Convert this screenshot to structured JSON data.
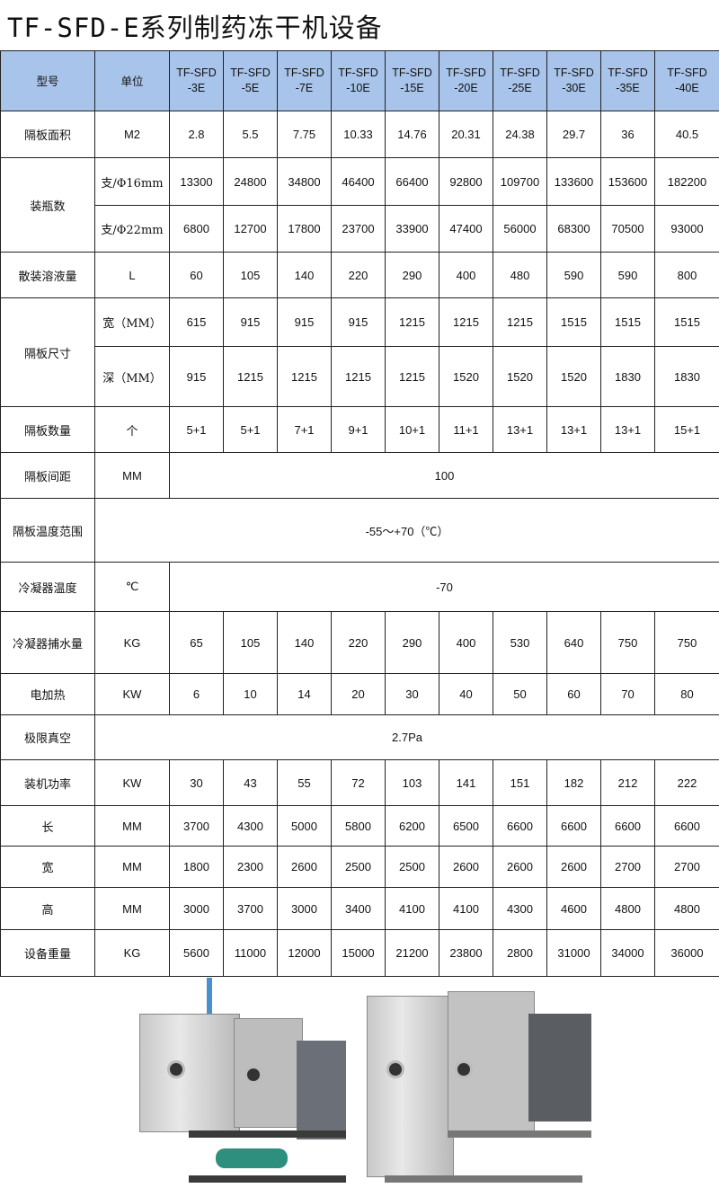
{
  "title": "TF-SFD-E系列制药冻干机设备",
  "table": {
    "header": {
      "label": "型号",
      "unit": "单位",
      "models": [
        "TF-SFD\n-3E",
        "TF-SFD\n-5E",
        "TF-SFD\n-7E",
        "TF-SFD\n-10E",
        "TF-SFD\n-15E",
        "TF-SFD\n-20E",
        "TF-SFD\n-25E",
        "TF-SFD\n-30E",
        "TF-SFD\n-35E",
        "TF-SFD\n-40E"
      ]
    },
    "rows": [
      {
        "label": "隔板面积",
        "unit": "M2",
        "values": [
          "2.8",
          "5.5",
          "7.75",
          "10.33",
          "14.76",
          "20.31",
          "24.38",
          "29.7",
          "36",
          "40.5"
        ],
        "h": 52
      },
      {
        "label": "装瓶数",
        "sub": [
          {
            "unit": "支/Φ16mm",
            "values": [
              "13300",
              "24800",
              "34800",
              "46400",
              "66400",
              "92800",
              "109700",
              "133600",
              "153600",
              "182200"
            ]
          },
          {
            "unit": "支/Φ22mm",
            "values": [
              "6800",
              "12700",
              "17800",
              "23700",
              "33900",
              "47400",
              "56000",
              "68300",
              "70500",
              "93000"
            ]
          }
        ],
        "h": [
          53,
          52
        ]
      },
      {
        "label": "散装溶液量",
        "unit": "L",
        "values": [
          "60",
          "105",
          "140",
          "220",
          "290",
          "400",
          "480",
          "590",
          "590",
          "800"
        ],
        "h": 51
      },
      {
        "label": "隔板尺寸",
        "sub": [
          {
            "unit": "宽（MM）",
            "values": [
              "615",
              "915",
              "915",
              "915",
              "1215",
              "1215",
              "1215",
              "1515",
              "1515",
              "1515"
            ]
          },
          {
            "unit": "深（MM）",
            "values": [
              "915",
              "1215",
              "1215",
              "1215",
              "1215",
              "1520",
              "1520",
              "1520",
              "1830",
              "1830"
            ]
          }
        ],
        "h": [
          54,
          67
        ]
      },
      {
        "label": "隔板数量",
        "unit": "个",
        "values": [
          "5+1",
          "5+1",
          "7+1",
          "9+1",
          "10+1",
          "11+1",
          "13+1",
          "13+1",
          "13+1",
          "15+1"
        ],
        "h": 51
      },
      {
        "label": "隔板间距",
        "unit": "MM",
        "span": "100",
        "h": 51
      },
      {
        "label": "隔板温度范围",
        "span": "-55～+70（℃）",
        "spanUnit": true,
        "h": 71
      },
      {
        "label": "冷凝器温度",
        "unit": "℃",
        "span": "-70",
        "h": 55
      },
      {
        "label": "冷凝器捕水量",
        "unit": "KG",
        "values": [
          "65",
          "105",
          "140",
          "220",
          "290",
          "400",
          "530",
          "640",
          "750",
          "750"
        ],
        "h": 69
      },
      {
        "label": "电加热",
        "unit": "KW",
        "values": [
          "6",
          "10",
          "14",
          "20",
          "30",
          "40",
          "50",
          "60",
          "70",
          "80"
        ],
        "h": 46
      },
      {
        "label": "极限真空",
        "span": "2.7Pa",
        "spanUnit": true,
        "h": 50
      },
      {
        "label": "装机功率",
        "unit": "KW",
        "values": [
          "30",
          "43",
          "55",
          "72",
          "103",
          "141",
          "151",
          "182",
          "212",
          "222"
        ],
        "h": 51
      },
      {
        "label": "长",
        "unit": "MM",
        "values": [
          "3700",
          "4300",
          "5000",
          "5800",
          "6200",
          "6500",
          "6600",
          "6600",
          "6600",
          "6600"
        ],
        "h": 45
      },
      {
        "label": "宽",
        "unit": "MM",
        "values": [
          "1800",
          "2300",
          "2600",
          "2500",
          "2500",
          "2600",
          "2600",
          "2600",
          "2700",
          "2700"
        ],
        "h": 46
      },
      {
        "label": "高",
        "unit": "MM",
        "values": [
          "3000",
          "3700",
          "3000",
          "3400",
          "4100",
          "4100",
          "4300",
          "4600",
          "4800",
          "4800"
        ],
        "h": 47
      },
      {
        "label": "设备重量",
        "unit": "KG",
        "values": [
          "5600",
          "11000",
          "12000",
          "15000",
          "21200",
          "23800",
          "2800",
          "31000",
          "34000",
          "36000"
        ],
        "h": 52
      }
    ]
  },
  "colors": {
    "header_bg": "#a9c4ea"
  }
}
